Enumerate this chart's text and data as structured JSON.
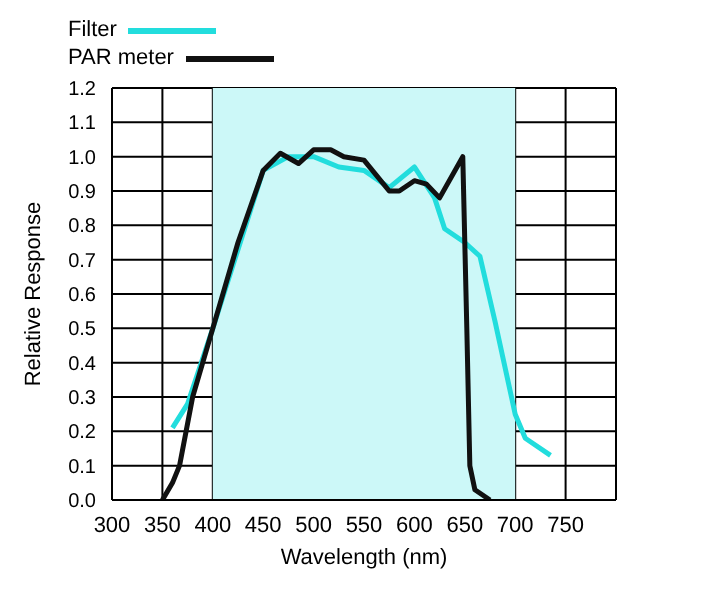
{
  "chart_data": {
    "type": "line",
    "xlabel": "Wavelength (nm)",
    "ylabel": "Relative Response",
    "xlim": [
      300,
      800
    ],
    "xticks": [
      300,
      350,
      400,
      450,
      500,
      550,
      600,
      650,
      700,
      750
    ],
    "ylim": [
      0,
      1.2
    ],
    "yticks": [
      {
        "value": 0,
        "label": "0.0"
      },
      0.1,
      0.2,
      0.3,
      0.4,
      0.5,
      0.6,
      0.7,
      0.8,
      0.9,
      {
        "value": 1,
        "label": "1.0"
      },
      1.1,
      1.2
    ],
    "grid": true,
    "legend": "top",
    "marker": "none",
    "bands": [
      {
        "axis": "x",
        "from": 400,
        "to": 700,
        "color": "#ccf8f8"
      }
    ],
    "series": [
      {
        "name": "Filter",
        "color": "#22dddd",
        "x": [
          360,
          375,
          400,
          425,
          450,
          475,
          500,
          525,
          550,
          575,
          600,
          620,
          630,
          650,
          665,
          680,
          700,
          710,
          735
        ],
        "values": [
          0.21,
          0.28,
          0.5,
          0.73,
          0.96,
          1.0,
          1.0,
          0.97,
          0.96,
          0.91,
          0.97,
          0.88,
          0.79,
          0.75,
          0.71,
          0.52,
          0.25,
          0.18,
          0.13
        ]
      },
      {
        "name": "PAR meter",
        "color": "#111111",
        "x": [
          350,
          360,
          367,
          380,
          400,
          425,
          450,
          467,
          485,
          500,
          517,
          530,
          550,
          575,
          585,
          600,
          612,
          625,
          648,
          652,
          655,
          660,
          675
        ],
        "values": [
          0,
          0.05,
          0.1,
          0.3,
          0.5,
          0.75,
          0.96,
          1.01,
          0.98,
          1.02,
          1.02,
          1.0,
          0.99,
          0.9,
          0.9,
          0.93,
          0.92,
          0.88,
          1.0,
          0.5,
          0.1,
          0.03,
          0
        ]
      }
    ]
  }
}
